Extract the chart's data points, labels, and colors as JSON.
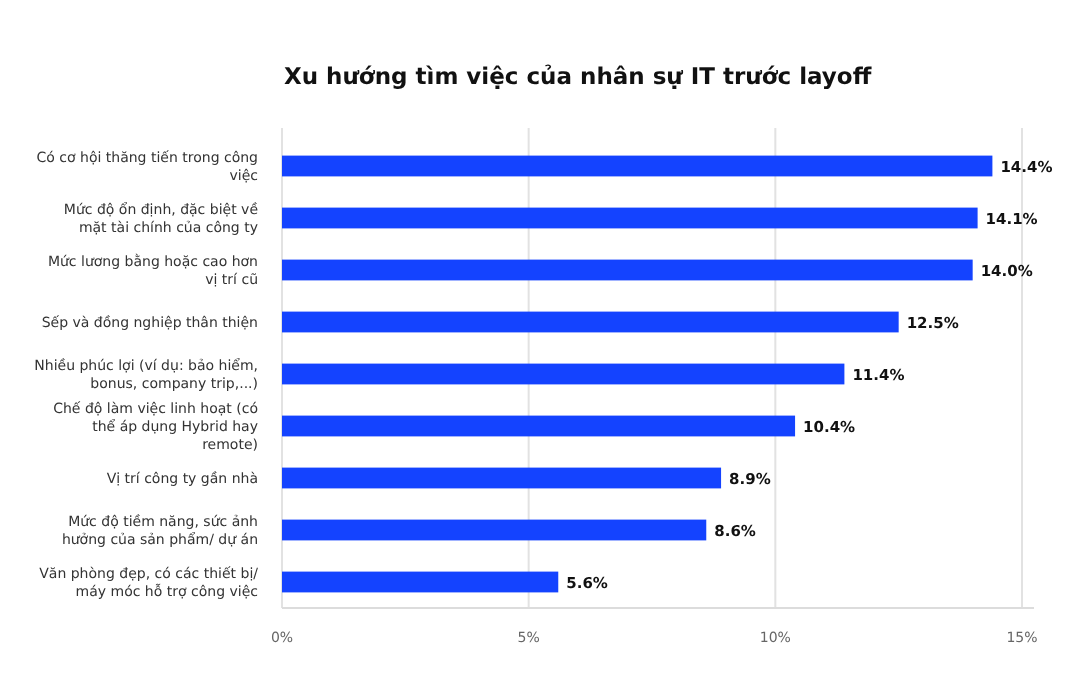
{
  "chart_data": {
    "type": "bar",
    "orientation": "horizontal",
    "title": "Xu hướng tìm việc của nhân sự IT trước layoff",
    "categories": [
      "Có cơ hội thăng tiến trong công việc",
      "Mức độ ổn định, đặc biệt về mặt tài chính của công ty",
      "Mức lương bằng hoặc cao hơn vị trí cũ",
      "Sếp và đồng nghiệp thân thiện",
      "Nhiều phúc lợi (ví dụ: bảo hiểm, bonus, company trip,...)",
      "Chế độ làm việc linh hoạt (có thể áp dụng Hybrid hay remote)",
      "Vị trí công ty gần nhà",
      "Mức độ tiềm năng, sức ảnh hưởng của sản phẩm/ dự án",
      "Văn phòng đẹp, có các thiết bị/ máy móc hỗ trợ công việc"
    ],
    "values": [
      14.4,
      14.1,
      14.0,
      12.5,
      11.4,
      10.4,
      8.9,
      8.6,
      5.6
    ],
    "value_labels": [
      "14.4%",
      "14.1%",
      "14.0%",
      "12.5%",
      "11.4%",
      "10.4%",
      "8.9%",
      "8.6%",
      "5.6%"
    ],
    "color": "#1443ff",
    "xlim": [
      0,
      15
    ],
    "xticks": [
      {
        "value": 0,
        "label": "0%"
      },
      {
        "value": 5,
        "label": "5%"
      },
      {
        "value": 10,
        "label": "10%"
      },
      {
        "value": 15,
        "label": "15%"
      }
    ],
    "grid": "x"
  }
}
